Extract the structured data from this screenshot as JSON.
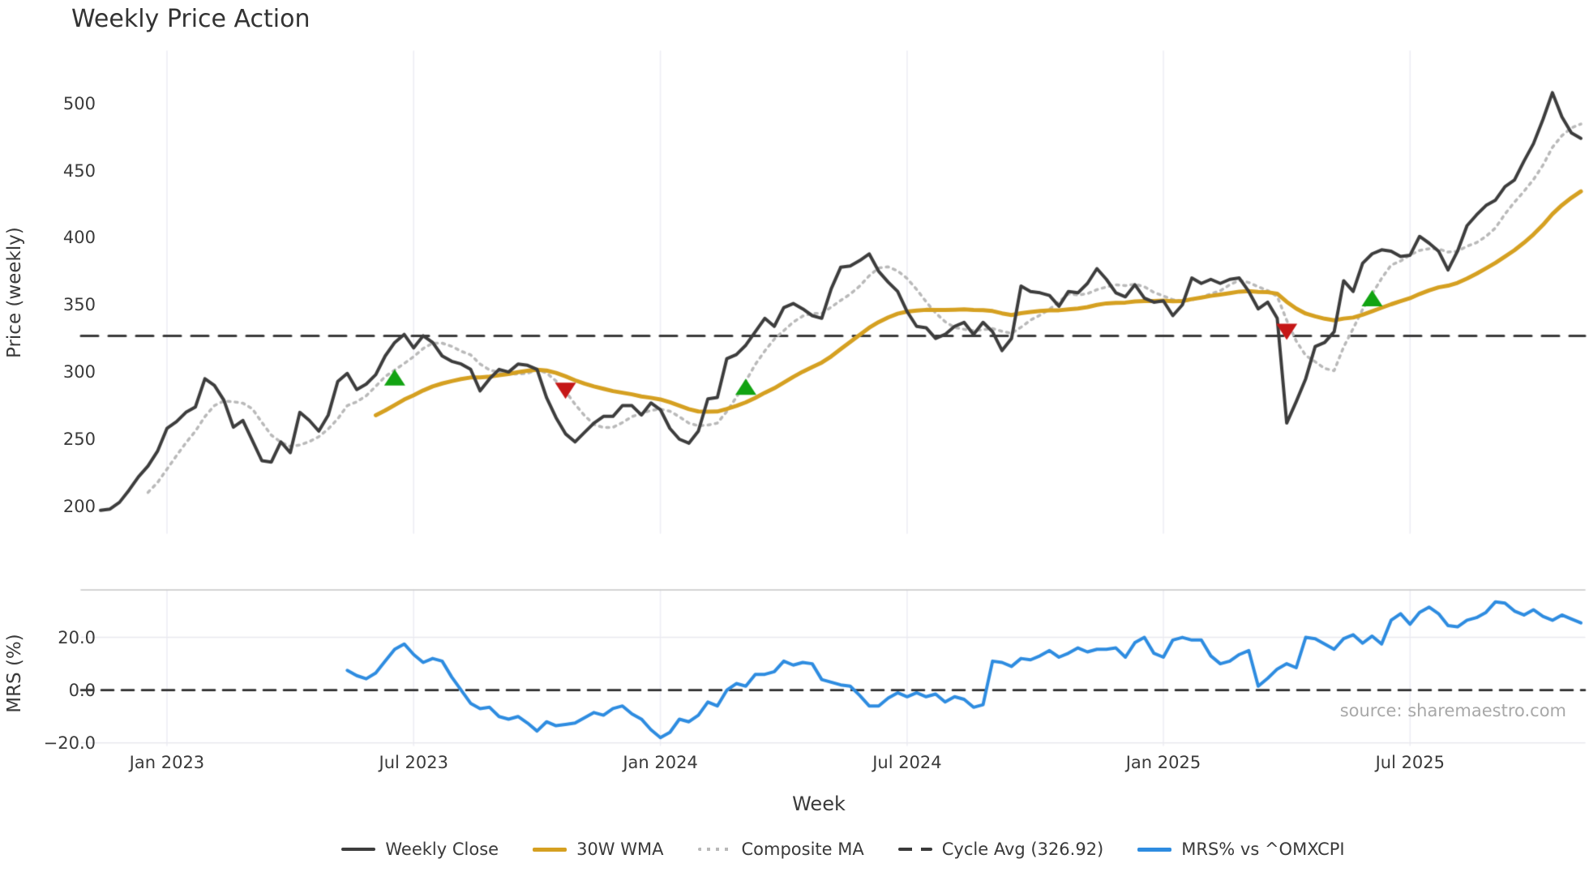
{
  "title": "Weekly Price Action",
  "source_note": "source: sharemaestro.com",
  "axes": {
    "x_label": "Week",
    "price_label": "Price (weekly)",
    "mrs_label": "MRS (%)"
  },
  "legend": {
    "items": [
      {
        "label": "Weekly Close",
        "swatch": "solid",
        "color": "#3d3d3d",
        "height": 4
      },
      {
        "label": "30W WMA",
        "swatch": "solid",
        "color": "#d5a021",
        "height": 5
      },
      {
        "label": "Composite MA",
        "swatch": "dotted",
        "color": "#b9b9b9",
        "height": 4
      },
      {
        "label": "Cycle Avg (326.92)",
        "swatch": "dashed",
        "color": "#3a3a3a",
        "height": 4
      },
      {
        "label": "MRS% vs ^OMXCPI",
        "swatch": "solid",
        "color": "#2e8ce0",
        "height": 5
      }
    ]
  },
  "colors": {
    "close_line": "#3d3d3d",
    "wma_line": "#d5a021",
    "composite_line": "#b9b9b9",
    "cycle_dash": "#3a3a3a",
    "mrs_line": "#2e8ce0",
    "buy_marker": "#12a312",
    "sell_marker": "#c51717",
    "vgrid": "#ededf4",
    "hgrid": "#e9e9ee",
    "spine": "#c6c6c6",
    "tick_text": "#3a3a3a",
    "source_text": "#a8a8a8"
  },
  "chart_data": {
    "type": "line",
    "n_points": 157,
    "x_unit": "week",
    "x_ticks": [
      {
        "index": 7,
        "label": "Jan 2023"
      },
      {
        "index": 33,
        "label": "Jul 2023"
      },
      {
        "index": 59,
        "label": "Jan 2024"
      },
      {
        "index": 85,
        "label": "Jul 2024"
      },
      {
        "index": 112,
        "label": "Jan 2025"
      },
      {
        "index": 138,
        "label": "Jul 2025"
      }
    ],
    "grid": {
      "vertical": true,
      "horizontal_price": false,
      "horizontal_mrs": [
        20,
        -20
      ]
    },
    "legend_position": "bottom",
    "panels": {
      "price": {
        "ylabel": "Price (weekly)",
        "ylim": [
          180,
          539
        ],
        "yticks": [
          200,
          250,
          300,
          350,
          400,
          450,
          500
        ],
        "cycle_avg": 326.92,
        "series": {
          "weekly_close": {
            "name": "Weekly Close",
            "values": [
              197,
              198,
              203,
              212,
              222,
              230,
              241,
              258,
              263,
              270,
              274,
              295,
              290,
              279,
              259,
              264,
              249,
              234,
              233,
              248,
              240,
              270,
              264,
              256,
              268,
              293,
              299,
              287,
              291,
              298,
              312,
              322,
              328,
              318,
              327,
              322,
              312,
              308,
              306,
              302,
              286,
              295,
              302,
              300,
              306,
              305,
              302,
              281,
              266,
              254,
              248,
              255,
              262,
              267,
              267,
              275,
              275,
              268,
              277,
              272,
              258,
              250,
              247,
              256,
              280,
              281,
              310,
              313,
              320,
              330,
              340,
              334,
              348,
              351,
              347,
              342,
              340,
              362,
              378,
              379,
              383,
              388,
              375,
              367,
              360,
              345,
              334,
              333,
              325,
              328,
              334,
              337,
              328,
              337,
              330,
              316,
              325,
              364,
              360,
              359,
              357,
              349,
              360,
              359,
              366,
              377,
              369,
              359,
              356,
              365,
              355,
              352,
              353,
              342,
              350,
              370,
              366,
              369,
              366,
              369,
              370,
              360,
              347,
              352,
              340,
              262,
              278,
              295,
              319,
              322,
              330,
              368,
              360,
              381,
              388,
              391,
              390,
              386,
              387,
              401,
              396,
              390,
              376,
              390,
              409,
              417,
              424,
              428,
              438,
              443,
              457,
              470,
              488,
              508,
              490,
              478,
              474
            ]
          },
          "wma_30w": {
            "name": "30W WMA",
            "derived": {
              "method": "wma",
              "window": 30,
              "of": "weekly_close"
            }
          },
          "composite_ma": {
            "name": "Composite MA",
            "derived": {
              "method": "sma",
              "window": 6,
              "of": "weekly_close"
            }
          }
        },
        "signals": [
          {
            "type": "buy",
            "index": 31,
            "value": 296
          },
          {
            "type": "sell",
            "index": 49,
            "value": 286
          },
          {
            "type": "buy",
            "index": 68,
            "value": 289
          },
          {
            "type": "sell",
            "index": 125,
            "value": 330
          },
          {
            "type": "buy",
            "index": 134,
            "value": 355
          }
        ]
      },
      "mrs": {
        "ylabel": "MRS (%)",
        "ylim": [
          -21,
          38
        ],
        "yticks": [
          {
            "value": 20,
            "label": "20.0"
          },
          {
            "value": 0,
            "label": "0.0"
          },
          {
            "value": -20,
            "label": "−20.0"
          }
        ],
        "zero_line_dashed": true,
        "series": {
          "mrs_pct": {
            "name": "MRS% vs ^OMXCPI",
            "values": [
              null,
              null,
              null,
              null,
              null,
              null,
              null,
              null,
              null,
              null,
              null,
              null,
              null,
              null,
              null,
              null,
              null,
              null,
              null,
              null,
              null,
              null,
              null,
              null,
              null,
              null,
              7.5,
              5.5,
              4.3,
              6.5,
              11,
              15.5,
              17.5,
              13.5,
              10.5,
              12,
              11,
              5,
              0,
              -5,
              -7,
              -6.5,
              -10,
              -11,
              -10,
              -12.5,
              -15.5,
              -12,
              -13.5,
              -13,
              -12.5,
              -10.5,
              -8.5,
              -9.5,
              -7,
              -6,
              -9,
              -11,
              -15,
              -18,
              -16,
              -11,
              -12,
              -9.5,
              -4.5,
              -6,
              0,
              2.5,
              1.5,
              6,
              6,
              7,
              11,
              9.5,
              10.5,
              10,
              4,
              3,
              2,
              1.5,
              -2,
              -6,
              -6,
              -3,
              -1,
              -2.5,
              -1,
              -2.5,
              -1.5,
              -4.5,
              -2.5,
              -3.5,
              -6.5,
              -5.5,
              11,
              10.5,
              9,
              12,
              11.5,
              13,
              15,
              12.5,
              14,
              16,
              14.5,
              15.5,
              15.5,
              16,
              12.5,
              18,
              20,
              14,
              12.5,
              19,
              20,
              19,
              19,
              13,
              10,
              11,
              13.5,
              15,
              1.5,
              4.5,
              8,
              10,
              8.5,
              20,
              19.5,
              17.5,
              15.5,
              19.5,
              21,
              17.8,
              20.5,
              17.5,
              26.5,
              29,
              25,
              29.5,
              31.5,
              29,
              24.5,
              24,
              26.5,
              27.5,
              29.5,
              33.5,
              33,
              30,
              28.5,
              30.5,
              28,
              26.5,
              28.5,
              27,
              25.5
            ]
          }
        }
      }
    }
  }
}
